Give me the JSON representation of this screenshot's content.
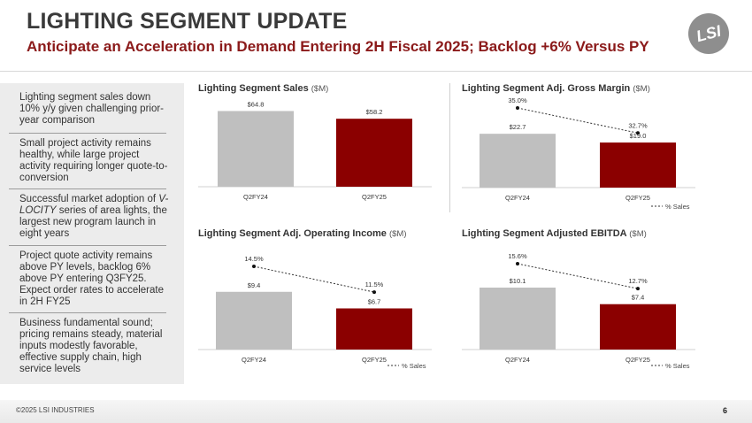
{
  "header": {
    "title": "LIGHTING SEGMENT UPDATE",
    "subtitle": "Anticipate an Acceleration in Demand Entering 2H Fiscal 2025; Backlog +6% Versus PY",
    "logo_text": "LSI"
  },
  "sidebar": {
    "bullets": [
      {
        "text": "Lighting segment sales down 10% y/y given challenging prior-year comparison"
      },
      {
        "text": "Small project activity remains healthy, while large project activity requiring longer quote-to-conversion"
      },
      {
        "text_before": "Successful market adoption of ",
        "text_em": "V-LOCITY",
        "text_after": " series of area lights, the largest new program launch in eight years"
      },
      {
        "text": "Project quote activity remains above PY levels, backlog 6% above PY entering Q3FY25. Expect order rates to accelerate in 2H FY25"
      },
      {
        "text": "Business fundamental sound; pricing remains steady, material inputs modestly favorable, effective supply chain, high service levels"
      }
    ]
  },
  "colors": {
    "prior": "#bfbfbf",
    "current": "#8b0000",
    "accent": "#8b1a1a"
  },
  "chart_data": [
    {
      "type": "bar",
      "title": "Lighting Segment Sales",
      "unit": "($M)",
      "categories": [
        "Q2FY24",
        "Q2FY25"
      ],
      "values": [
        64.8,
        58.2
      ],
      "value_labels": [
        "$64.8",
        "$58.2"
      ]
    },
    {
      "type": "bar",
      "title": "Lighting Segment Adj. Gross Margin",
      "unit": "($M)",
      "categories": [
        "Q2FY24",
        "Q2FY25"
      ],
      "values": [
        22.7,
        19.0
      ],
      "value_labels": [
        "$22.7",
        "$19.0"
      ],
      "line_series": {
        "name": "% Sales",
        "values": [
          35.0,
          32.7
        ],
        "labels": [
          "35.0%",
          "32.7%"
        ]
      },
      "legend": "bottom-right"
    },
    {
      "type": "bar",
      "title": "Lighting Segment Adj. Operating Income",
      "unit": "($M)",
      "categories": [
        "Q2FY24",
        "Q2FY25"
      ],
      "values": [
        9.4,
        6.7
      ],
      "value_labels": [
        "$9.4",
        "$6.7"
      ],
      "line_series": {
        "name": "% Sales",
        "values": [
          14.5,
          11.5
        ],
        "labels": [
          "14.5%",
          "11.5%"
        ]
      },
      "legend": "bottom-right"
    },
    {
      "type": "bar",
      "title": "Lighting Segment Adjusted EBITDA",
      "unit": "($M)",
      "categories": [
        "Q2FY24",
        "Q2FY25"
      ],
      "values": [
        10.1,
        7.4
      ],
      "value_labels": [
        "$10.1",
        "$7.4"
      ],
      "line_series": {
        "name": "% Sales",
        "values": [
          15.6,
          12.7
        ],
        "labels": [
          "15.6%",
          "12.7%"
        ]
      },
      "legend": "bottom-right"
    }
  ],
  "footer": {
    "copyright": "©2025 LSI INDUSTRIES",
    "page_number": "6"
  }
}
